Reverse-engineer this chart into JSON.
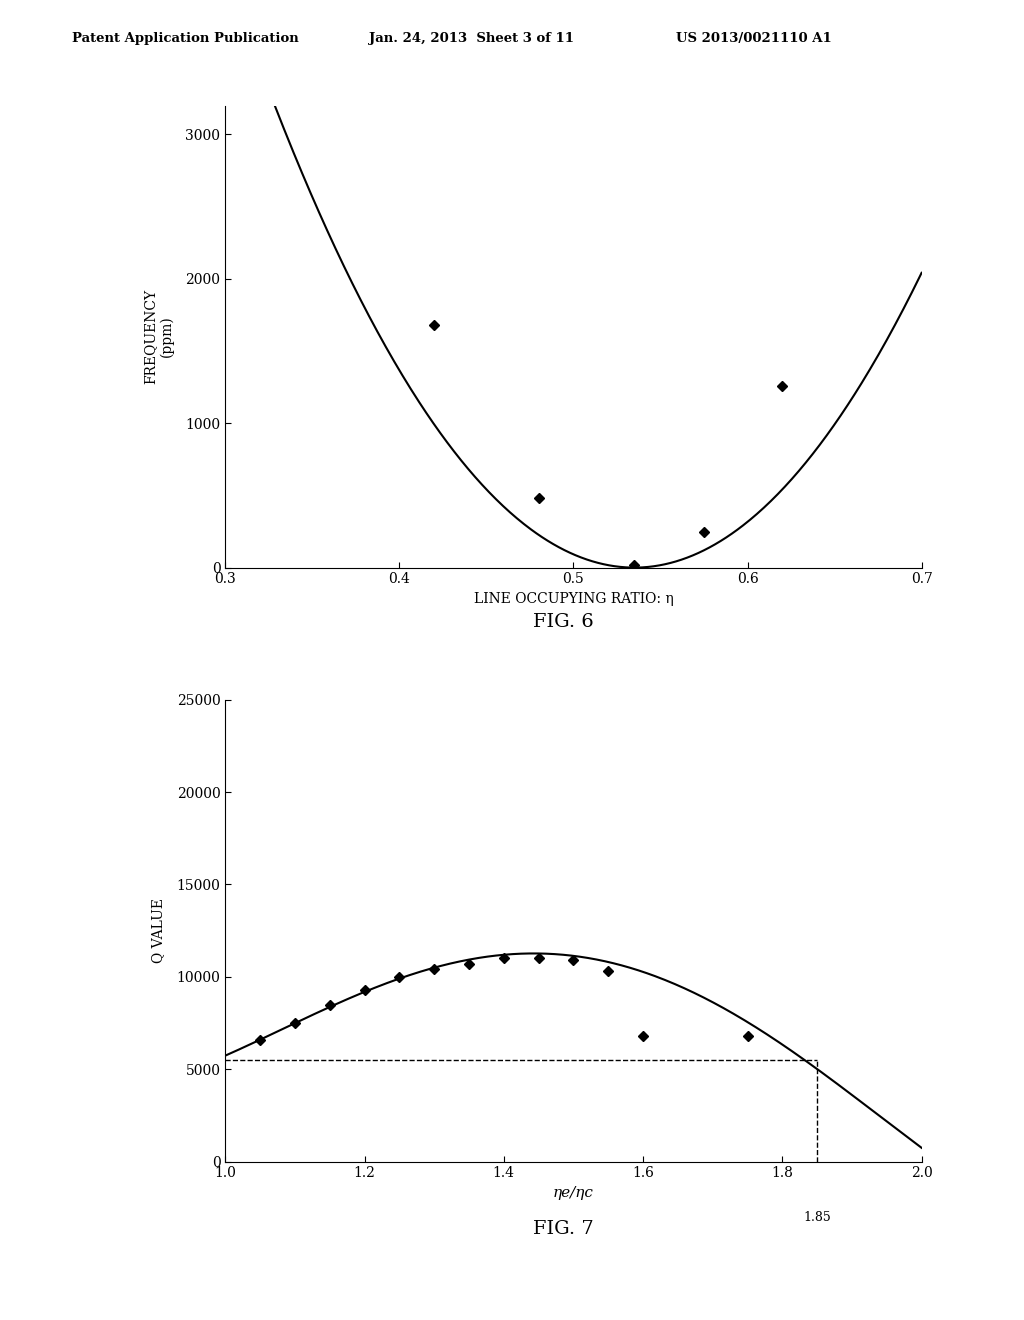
{
  "header_left": "Patent Application Publication",
  "header_mid": "Jan. 24, 2013  Sheet 3 of 11",
  "header_right": "US 2013/0021110 A1",
  "fig6": {
    "title": "FIG. 6",
    "xlabel": "LINE OCCUPYING RATIO: η",
    "ylabel": "FREQUENCY\n(ppm)",
    "xlim": [
      0.3,
      0.7
    ],
    "ylim": [
      0,
      3200
    ],
    "xticks": [
      0.3,
      0.4,
      0.5,
      0.6,
      0.7
    ],
    "yticks": [
      0,
      1000,
      2000,
      3000
    ],
    "data_points_x": [
      0.42,
      0.48,
      0.535,
      0.575,
      0.62
    ],
    "data_points_y": [
      1680,
      480,
      20,
      250,
      1260
    ],
    "curve_min_x": 0.535,
    "parabola_a": 75000
  },
  "fig7": {
    "title": "FIG. 7",
    "xlabel": "ηe/ηc",
    "ylabel": "Q VALUE",
    "xlim": [
      1.0,
      2.0
    ],
    "ylim": [
      0,
      25000
    ],
    "xticks": [
      1.0,
      1.2,
      1.4,
      1.6,
      1.8,
      2.0
    ],
    "yticks": [
      0,
      5000,
      10000,
      15000,
      20000,
      25000
    ],
    "data_points_x": [
      1.05,
      1.1,
      1.15,
      1.2,
      1.25,
      1.3,
      1.35,
      1.4,
      1.45,
      1.5,
      1.55,
      1.6,
      1.75
    ],
    "data_points_y": [
      6600,
      7500,
      8500,
      9300,
      10000,
      10400,
      10700,
      11000,
      11000,
      10900,
      10300,
      6800,
      6800
    ],
    "hline_y": 5500,
    "vline_x": 1.85,
    "vline_label": "1.85",
    "curve_pts_x": [
      1.0,
      1.1,
      1.2,
      1.3,
      1.4,
      1.5,
      1.6,
      1.7,
      1.8,
      1.9,
      2.0
    ],
    "curve_pts_y": [
      5700,
      7500,
      9300,
      10500,
      11100,
      10900,
      10400,
      8800,
      6500,
      3200,
      900
    ]
  },
  "background_color": "#ffffff",
  "text_color": "#000000"
}
